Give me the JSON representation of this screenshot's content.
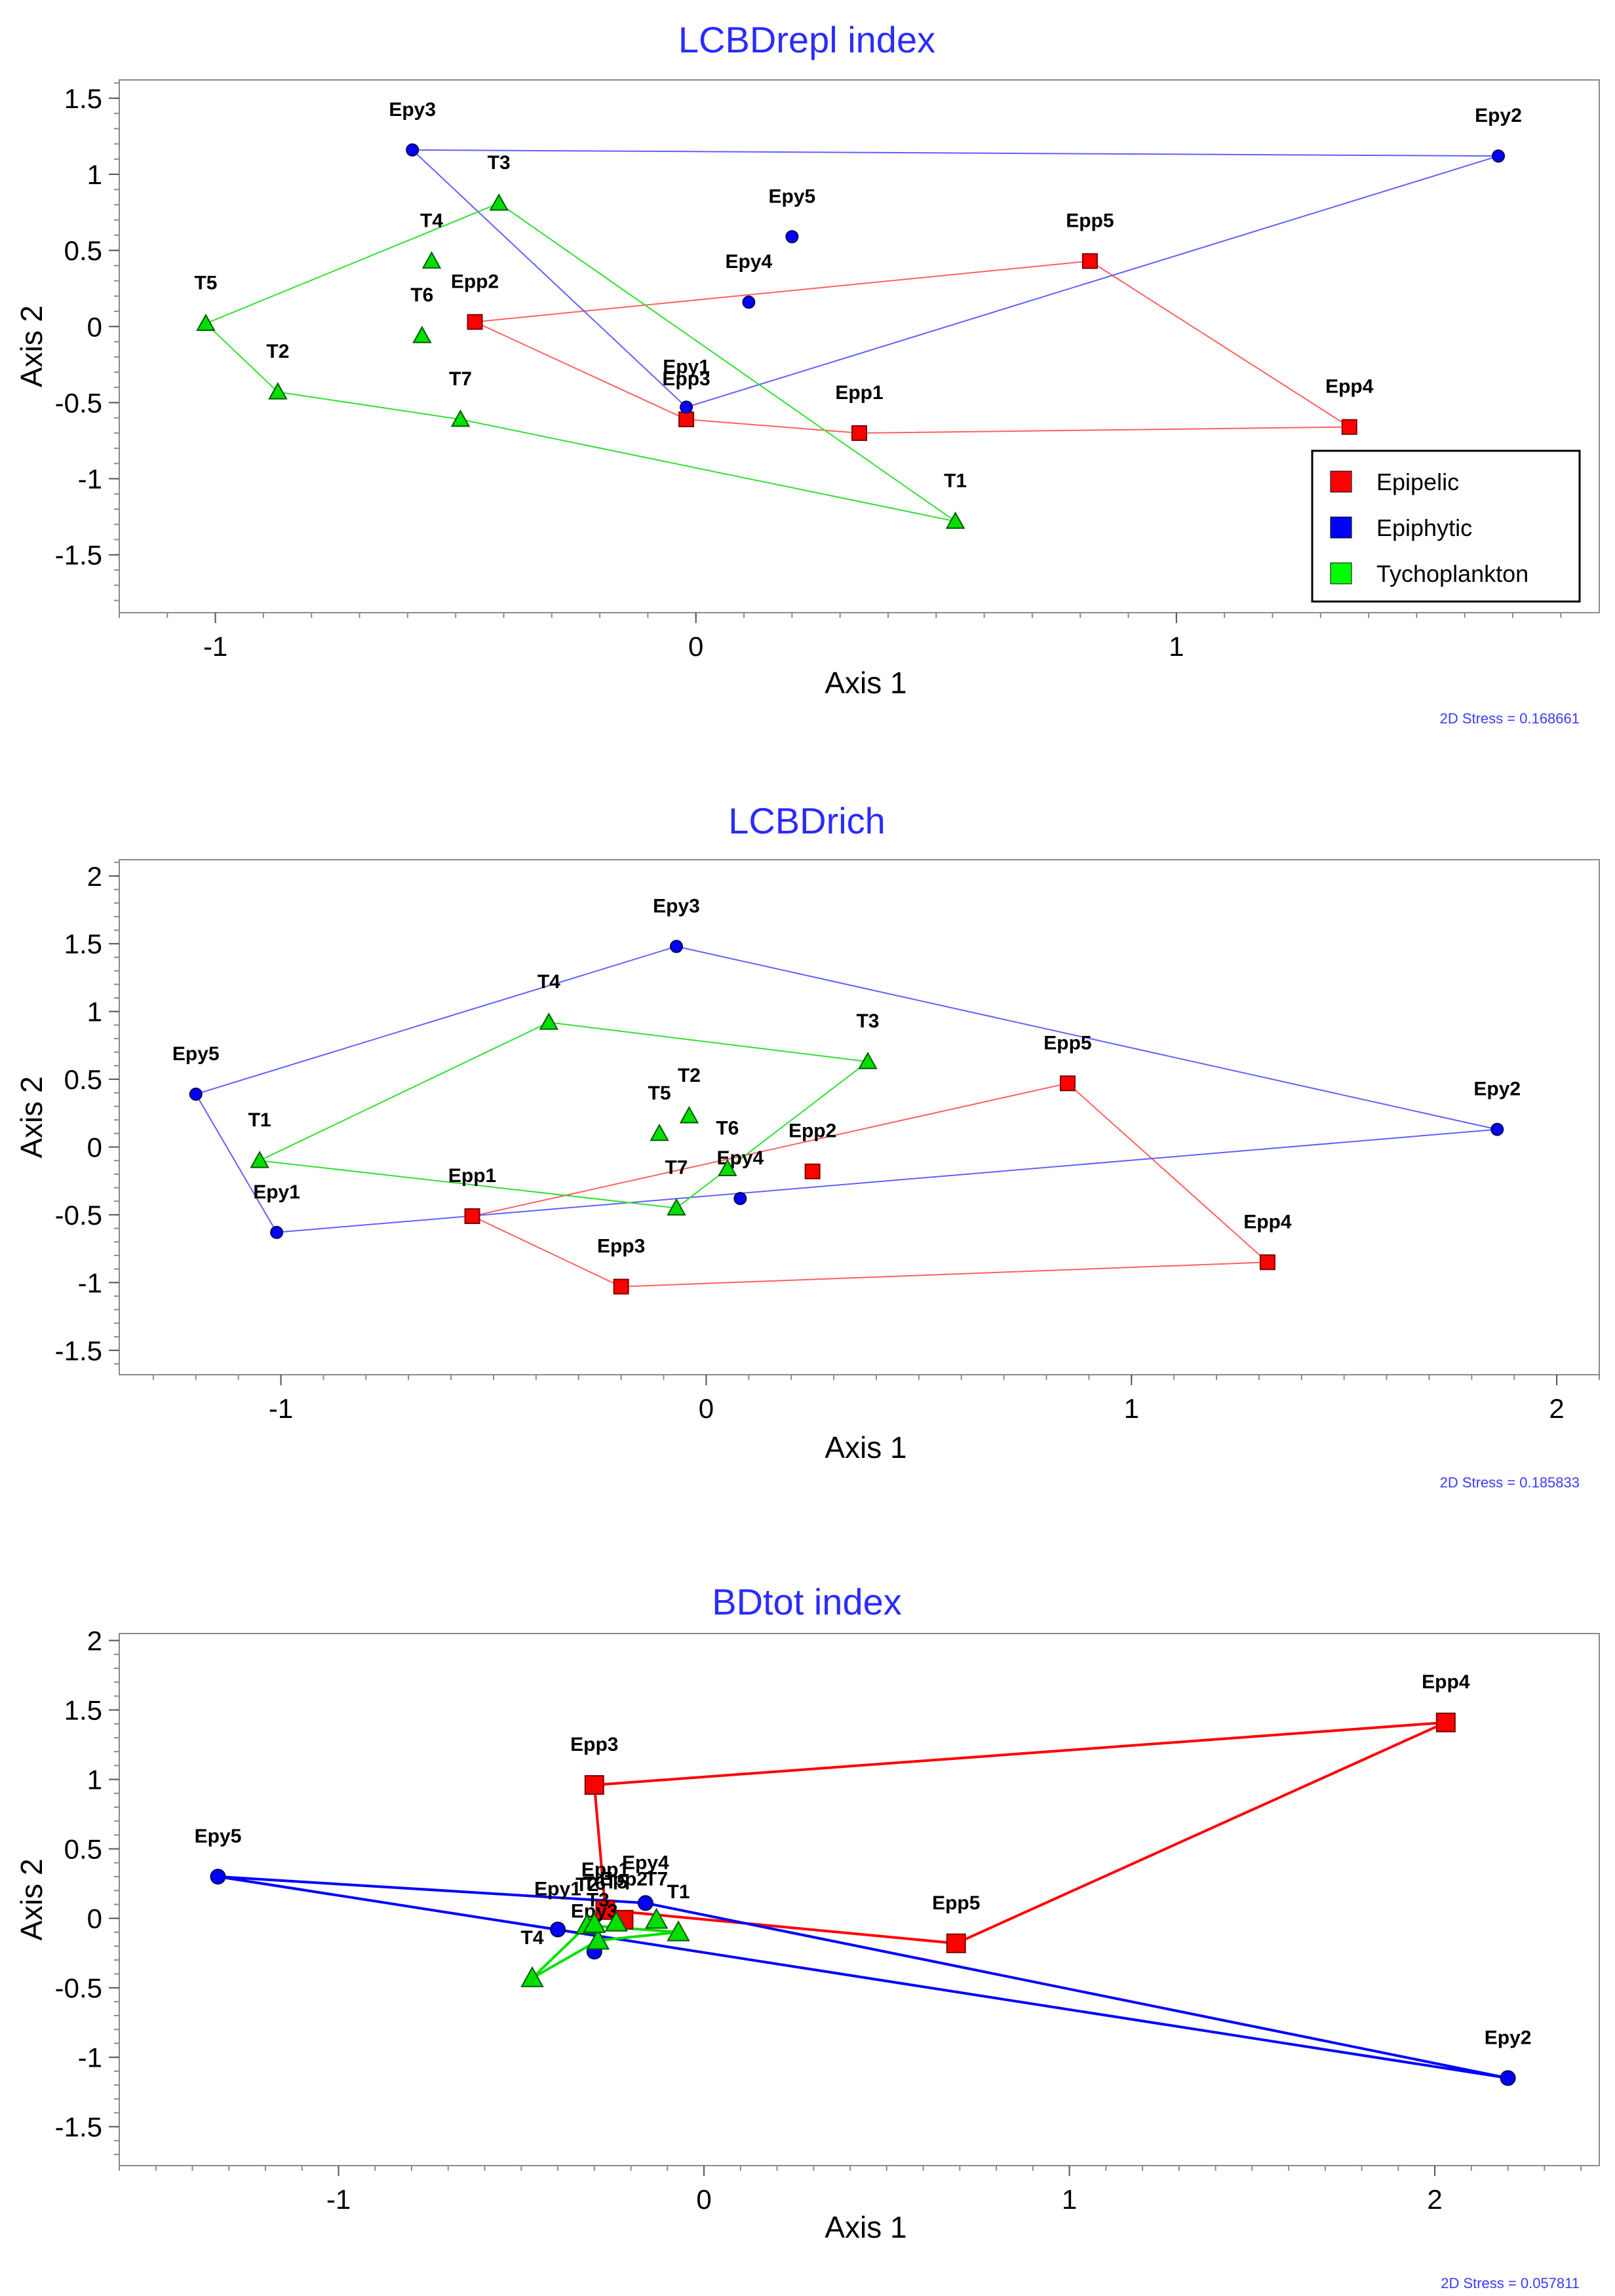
{
  "chart_data": [
    {
      "type": "scatter",
      "title": "LCBDrepl index",
      "xlabel": "Axis 1",
      "ylabel": "Axis 2",
      "xlim": [
        -1.2,
        1.88
      ],
      "ylim": [
        -1.88,
        1.62
      ],
      "xticks": [
        -1,
        0,
        1
      ],
      "yticks": [
        1.5,
        1,
        0.5,
        0,
        -0.5,
        -1,
        -1.5
      ],
      "stress": "2D Stress = 0.168661",
      "legend": {
        "position": "bottom-right",
        "entries": [
          {
            "name": "Epipelic",
            "color": "#ff0000"
          },
          {
            "name": "Epiphytic",
            "color": "#0000ff"
          },
          {
            "name": "Tychoplankton",
            "color": "#00ff00"
          }
        ]
      },
      "series": [
        {
          "name": "Epipelic",
          "marker": "square",
          "fill": "#ff0000",
          "line": "#ff6060",
          "hull_width": 2,
          "points": [
            {
              "label": "Epp1",
              "x": 0.34,
              "y": -0.7
            },
            {
              "label": "Epp2",
              "x": -0.46,
              "y": 0.03
            },
            {
              "label": "Epp3",
              "x": -0.02,
              "y": -0.61
            },
            {
              "label": "Epp4",
              "x": 1.36,
              "y": -0.66
            },
            {
              "label": "Epp5",
              "x": 0.82,
              "y": 0.43
            }
          ],
          "hull": [
            "Epp2",
            "Epp5",
            "Epp4",
            "Epp1",
            "Epp3"
          ]
        },
        {
          "name": "Epiphytic",
          "marker": "circle",
          "fill": "#0000ff",
          "line": "#6060ff",
          "hull_width": 2,
          "points": [
            {
              "label": "Epy1",
              "x": -0.02,
              "y": -0.53
            },
            {
              "label": "Epy2",
              "x": 1.67,
              "y": 1.12
            },
            {
              "label": "Epy3",
              "x": -0.59,
              "y": 1.16
            },
            {
              "label": "Epy4",
              "x": 0.11,
              "y": 0.16
            },
            {
              "label": "Epy5",
              "x": 0.2,
              "y": 0.59
            }
          ],
          "hull": [
            "Epy3",
            "Epy2",
            "Epy1"
          ]
        },
        {
          "name": "Tychoplankton",
          "marker": "triangle",
          "fill": "#00e000",
          "line": "#30e030",
          "hull_width": 2,
          "points": [
            {
              "label": "T1",
              "x": 0.54,
              "y": -1.28
            },
            {
              "label": "T2",
              "x": -0.87,
              "y": -0.43
            },
            {
              "label": "T3",
              "x": -0.41,
              "y": 0.81
            },
            {
              "label": "T4",
              "x": -0.55,
              "y": 0.43
            },
            {
              "label": "T5",
              "x": -1.02,
              "y": 0.02
            },
            {
              "label": "T6",
              "x": -0.57,
              "y": -0.06
            },
            {
              "label": "T7",
              "x": -0.49,
              "y": -0.61
            }
          ],
          "hull": [
            "T5",
            "T3",
            "T1",
            "T7",
            "T2"
          ]
        }
      ]
    },
    {
      "type": "scatter",
      "title": "LCBDrich",
      "xlabel": "Axis 1",
      "ylabel": "Axis 2",
      "xlim": [
        -1.38,
        2.1
      ],
      "ylim": [
        -1.68,
        2.12
      ],
      "xticks": [
        -1,
        0,
        1,
        2
      ],
      "yticks": [
        2,
        1.5,
        1,
        0.5,
        0,
        -0.5,
        -1,
        -1.5
      ],
      "stress": "2D Stress = 0.185833",
      "series": [
        {
          "name": "Epipelic",
          "marker": "square",
          "fill": "#ff0000",
          "line": "#ff6060",
          "hull_width": 2,
          "points": [
            {
              "label": "Epp1",
              "x": -0.55,
              "y": -0.51
            },
            {
              "label": "Epp2",
              "x": 0.25,
              "y": -0.18
            },
            {
              "label": "Epp3",
              "x": -0.2,
              "y": -1.03
            },
            {
              "label": "Epp4",
              "x": 1.32,
              "y": -0.85
            },
            {
              "label": "Epp5",
              "x": 0.85,
              "y": 0.47
            }
          ],
          "hull": [
            "Epp1",
            "Epp5",
            "Epp4",
            "Epp3"
          ]
        },
        {
          "name": "Epiphytic",
          "marker": "circle",
          "fill": "#0000ff",
          "line": "#6060ff",
          "hull_width": 2,
          "points": [
            {
              "label": "Epy1",
              "x": -1.01,
              "y": -0.63
            },
            {
              "label": "Epy2",
              "x": 1.86,
              "y": 0.13
            },
            {
              "label": "Epy3",
              "x": -0.07,
              "y": 1.48
            },
            {
              "label": "Epy4",
              "x": 0.08,
              "y": -0.38
            },
            {
              "label": "Epy5",
              "x": -1.2,
              "y": 0.39
            }
          ],
          "hull": [
            "Epy5",
            "Epy3",
            "Epy2",
            "Epy1"
          ]
        },
        {
          "name": "Tychoplankton",
          "marker": "triangle",
          "fill": "#00e000",
          "line": "#30e030",
          "hull_width": 2,
          "points": [
            {
              "label": "T1",
              "x": -1.05,
              "y": -0.1
            },
            {
              "label": "T2",
              "x": -0.04,
              "y": 0.23
            },
            {
              "label": "T3",
              "x": 0.38,
              "y": 0.63
            },
            {
              "label": "T4",
              "x": -0.37,
              "y": 0.92
            },
            {
              "label": "T5",
              "x": -0.11,
              "y": 0.1
            },
            {
              "label": "T6",
              "x": 0.05,
              "y": -0.16
            },
            {
              "label": "T7",
              "x": -0.07,
              "y": -0.45
            }
          ],
          "hull": [
            "T1",
            "T4",
            "T3",
            "T7"
          ]
        }
      ]
    },
    {
      "type": "scatter",
      "title": "BDtot index",
      "xlabel": "Axis 1",
      "ylabel": "Axis 2",
      "xlim": [
        -1.6,
        2.45
      ],
      "ylim": [
        -1.78,
        2.05
      ],
      "xticks": [
        -1,
        0,
        1,
        2
      ],
      "yticks": [
        2,
        1.5,
        1,
        0.5,
        0,
        -0.5,
        -1,
        -1.5
      ],
      "stress": "2D Stress = 0.057811",
      "series": [
        {
          "name": "Epipelic",
          "marker": "square",
          "fill": "#ff0000",
          "line": "#ff0000",
          "hull_width": 4,
          "points": [
            {
              "label": "Epp1",
              "x": -0.27,
              "y": 0.06
            },
            {
              "label": "Epp2",
              "x": -0.22,
              "y": -0.01
            },
            {
              "label": "Epp3",
              "x": -0.3,
              "y": 0.96
            },
            {
              "label": "Epp4",
              "x": 2.03,
              "y": 1.41
            },
            {
              "label": "Epp5",
              "x": 0.69,
              "y": -0.18
            }
          ],
          "hull": [
            "Epp3",
            "Epp4",
            "Epp5",
            "Epp1"
          ]
        },
        {
          "name": "Epiphytic",
          "marker": "circle",
          "fill": "#0000ff",
          "line": "#0000ff",
          "hull_width": 4,
          "points": [
            {
              "label": "Epy1",
              "x": -0.4,
              "y": -0.08
            },
            {
              "label": "Epy2",
              "x": 2.2,
              "y": -1.15
            },
            {
              "label": "Epy3",
              "x": -0.3,
              "y": -0.24
            },
            {
              "label": "Epy4",
              "x": -0.16,
              "y": 0.11
            },
            {
              "label": "Epy5",
              "x": -1.33,
              "y": 0.3
            }
          ],
          "hull": [
            "Epy5",
            "Epy4",
            "Epy2"
          ]
        },
        {
          "name": "Tychoplankton",
          "marker": "triangle",
          "fill": "#00e000",
          "line": "#00e000",
          "hull_width": 4,
          "points": [
            {
              "label": "T1",
              "x": -0.07,
              "y": -0.1
            },
            {
              "label": "T2",
              "x": -0.32,
              "y": -0.05
            },
            {
              "label": "T3",
              "x": -0.29,
              "y": -0.16
            },
            {
              "label": "T4",
              "x": -0.47,
              "y": -0.43
            },
            {
              "label": "T5",
              "x": -0.24,
              "y": -0.03
            },
            {
              "label": "T6",
              "x": -0.3,
              "y": -0.04
            },
            {
              "label": "T7",
              "x": -0.13,
              "y": -0.01
            }
          ],
          "hull": [
            "T4",
            "T2",
            "T1",
            "T3"
          ]
        }
      ]
    }
  ]
}
